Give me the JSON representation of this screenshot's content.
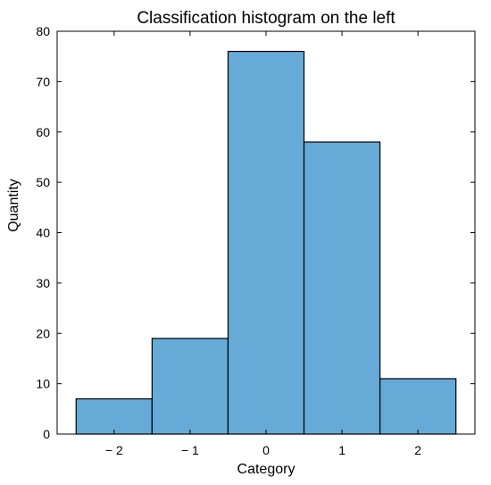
{
  "chart_data": {
    "type": "bar",
    "title": "Classification histogram on the left",
    "xlabel": "Category",
    "ylabel": "Quantity",
    "categories": [
      "− 2",
      "− 1",
      "0",
      "1",
      "2"
    ],
    "x": [
      -2,
      -1,
      0,
      1,
      2
    ],
    "values": [
      7,
      19,
      76,
      58,
      11
    ],
    "xlim": [
      -2.75,
      2.75
    ],
    "ylim": [
      0,
      80
    ],
    "yticks": [
      "0",
      "10",
      "20",
      "30",
      "40",
      "50",
      "60",
      "70",
      "80"
    ],
    "grid": false,
    "bar_color": "#66aad8",
    "edge_color": "#000000"
  }
}
